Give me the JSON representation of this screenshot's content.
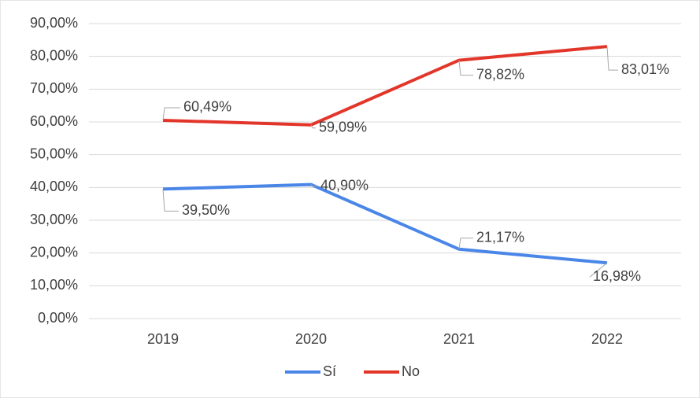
{
  "chart_data": {
    "type": "line",
    "categories": [
      "2019",
      "2020",
      "2021",
      "2022"
    ],
    "series": [
      {
        "name": "Sí",
        "color": "#4a86e8",
        "values": [
          39.5,
          40.9,
          21.17,
          16.98
        ],
        "value_labels": [
          "39,50%",
          "40,90%",
          "21,17%",
          "16,98%"
        ]
      },
      {
        "name": "No",
        "color": "#e3362b",
        "values": [
          60.49,
          59.09,
          78.82,
          83.01
        ],
        "value_labels": [
          "60,49%",
          "59,09%",
          "78,82%",
          "83,01%"
        ]
      }
    ],
    "ylim": [
      0,
      90
    ],
    "yticks": [
      {
        "value": 0,
        "label": "0,00%"
      },
      {
        "value": 10,
        "label": "10,00%"
      },
      {
        "value": 20,
        "label": "20,00%"
      },
      {
        "value": 30,
        "label": "30,00%"
      },
      {
        "value": 40,
        "label": "40,00%"
      },
      {
        "value": 50,
        "label": "50,00%"
      },
      {
        "value": 60,
        "label": "60,00%"
      },
      {
        "value": 70,
        "label": "70,00%"
      },
      {
        "value": 80,
        "label": "80,00%"
      },
      {
        "value": 90,
        "label": "90,00%"
      }
    ],
    "grid": true,
    "legend": "bottom"
  }
}
